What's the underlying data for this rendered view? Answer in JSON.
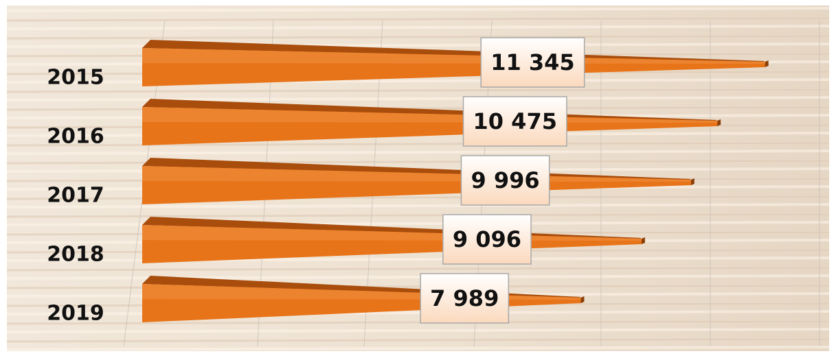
{
  "chart_data": {
    "type": "bar",
    "orientation": "horizontal",
    "categories": [
      "2015",
      "2016",
      "2017",
      "2018",
      "2019"
    ],
    "values": [
      11345,
      10475,
      9996,
      9096,
      7989
    ],
    "value_labels": [
      "11 345",
      "10 475",
      "9 996",
      "9 096",
      "7 989"
    ],
    "color": "#e8741a",
    "xlim": [
      0,
      12000
    ]
  }
}
